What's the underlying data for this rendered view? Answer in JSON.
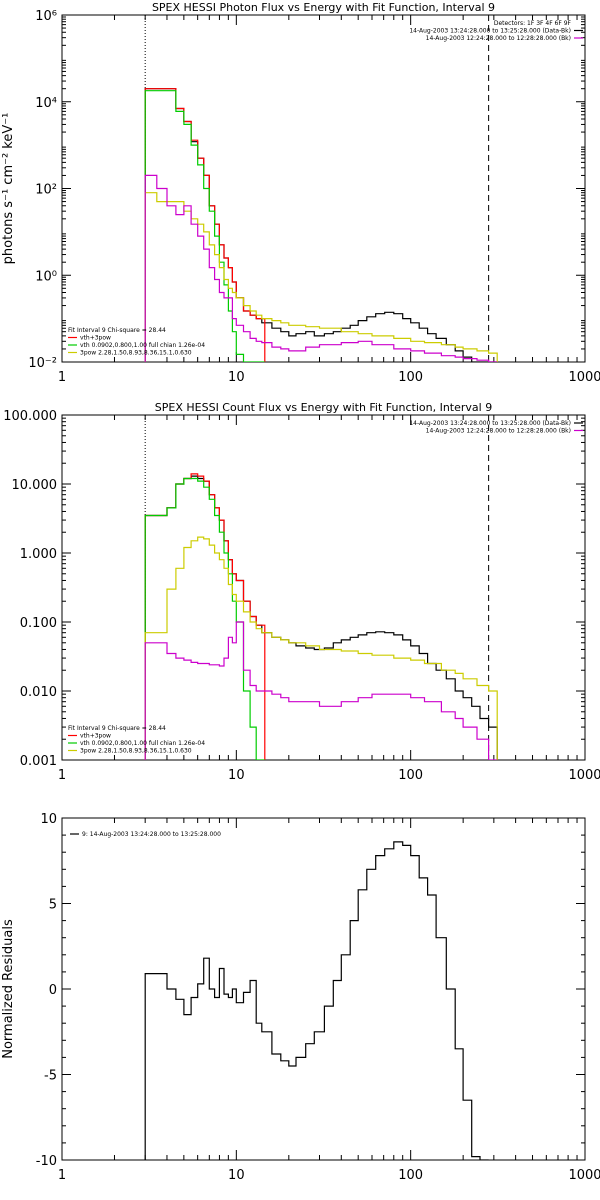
{
  "chart_data": [
    {
      "type": "line",
      "title": "SPEX HESSI Photon Flux vs Energy with Fit Function, Interval 9",
      "ylabel": "photons s⁻¹ cm⁻² keV⁻¹",
      "xlog": true,
      "ylog": true,
      "xlim": [
        1,
        1000
      ],
      "ylim": [
        0.01,
        1000000
      ],
      "xticks": [
        {
          "v": 1,
          "label": "1"
        },
        {
          "v": 10,
          "label": "10"
        },
        {
          "v": 100,
          "label": "100"
        },
        {
          "v": 1000,
          "label": "1000"
        }
      ],
      "yticks": [
        {
          "v": 0.01,
          "label": "10⁻²"
        },
        {
          "v": 1,
          "label": "10⁰"
        },
        {
          "v": 100,
          "label": "10²"
        },
        {
          "v": 10000,
          "label": "10⁴"
        },
        {
          "v": 1000000,
          "label": "10⁶"
        }
      ],
      "vlines": [
        {
          "x": 3,
          "style": "dotted"
        },
        {
          "x": 280,
          "style": "dashed"
        }
      ],
      "legend_right": {
        "lines": [
          {
            "text": "Detectors: 1F 3F 4F 6F 9F",
            "color": "#000000",
            "line": false
          },
          {
            "text": "14-Aug-2003 13:24:28.000 to 13:25:28.000 (Data-Bk)",
            "color": "#000000",
            "line": true
          },
          {
            "text": "14-Aug-2003 12:24:28.000 to 12:28:28.000 (Bk)",
            "color": "#cc00cc",
            "line": true
          }
        ]
      },
      "legend_left": {
        "lines": [
          {
            "text": "Fit Interval 9   Chi-square = 28.44",
            "color": "#000000",
            "line": false
          },
          {
            "text": "vth+3pow",
            "color": "#ff0000",
            "line": true
          },
          {
            "text": "vth 0.0902,0.800,1.00  full chian 1.26e-04",
            "color": "#00cc00",
            "line": true
          },
          {
            "text": "3pow 2.28,1.50,8.93,8.36,15.1,0.630",
            "color": "#cccc00",
            "line": true
          }
        ]
      },
      "series": [
        {
          "color": "#000000",
          "x": [
            3,
            3.5,
            4,
            4.5,
            5,
            5.5,
            6,
            6.5,
            7,
            7.5,
            8,
            8.5,
            9,
            9.5,
            10,
            11,
            12,
            13,
            14,
            16,
            18,
            20,
            22,
            25,
            28,
            32,
            36,
            40,
            45,
            50,
            56,
            63,
            71,
            80,
            90,
            100,
            112,
            125,
            140,
            160,
            180,
            200,
            224,
            250,
            280
          ],
          "y": [
            20000,
            20000,
            20000,
            7000,
            3500,
            1200,
            500,
            200,
            40,
            15,
            5,
            2.5,
            1.5,
            0.7,
            0.3,
            0.15,
            0.12,
            0.1,
            0.08,
            0.06,
            0.05,
            0.04,
            0.045,
            0.05,
            0.04,
            0.045,
            0.05,
            0.06,
            0.07,
            0.09,
            0.11,
            0.13,
            0.14,
            0.13,
            0.1,
            0.08,
            0.06,
            0.045,
            0.035,
            0.025,
            0.018,
            0.013,
            0.009,
            0.007,
            0.005
          ]
        },
        {
          "color": "#ff0000",
          "x": [
            3,
            3.5,
            4,
            4.5,
            5,
            5.5,
            6,
            6.5,
            7,
            7.5,
            8,
            8.5,
            9,
            9.5,
            10,
            11,
            12,
            13
          ],
          "y": [
            20000,
            20000,
            20000,
            7000,
            3500,
            1300,
            500,
            200,
            40,
            15,
            5,
            2.5,
            1.5,
            0.7,
            0.3,
            0.15,
            0.12,
            0.1
          ]
        },
        {
          "color": "#00cc00",
          "x": [
            3,
            3.5,
            4,
            4.5,
            5,
            5.5,
            6,
            6.5,
            7,
            7.5,
            8,
            8.5,
            9,
            9.5,
            10,
            11,
            12,
            13
          ],
          "y": [
            18000,
            18000,
            18000,
            6000,
            3000,
            1000,
            350,
            100,
            30,
            8,
            2,
            0.6,
            0.15,
            0.05,
            0.015,
            0.01,
            0.01,
            0.01
          ]
        },
        {
          "color": "#cccc00",
          "x": [
            3,
            3.5,
            4,
            4.5,
            5,
            5.5,
            6,
            6.5,
            7,
            7.5,
            8,
            8.5,
            9,
            9.5,
            10,
            11,
            12,
            13,
            14,
            16,
            18,
            20,
            25,
            30,
            40,
            50,
            60,
            80,
            100,
            120,
            150,
            180,
            200,
            240,
            280
          ],
          "y": [
            80,
            50,
            50,
            50,
            30,
            20,
            15,
            10,
            5,
            3,
            1.5,
            0.8,
            0.5,
            0.4,
            0.3,
            0.2,
            0.15,
            0.12,
            0.1,
            0.09,
            0.08,
            0.07,
            0.065,
            0.06,
            0.05,
            0.045,
            0.04,
            0.035,
            0.03,
            0.028,
            0.025,
            0.022,
            0.02,
            0.018,
            0.016
          ]
        },
        {
          "color": "#cc00cc",
          "x": [
            3,
            3.5,
            4,
            4.5,
            5,
            5.5,
            6,
            6.5,
            7,
            7.5,
            8,
            8.5,
            9,
            9.5,
            10,
            11,
            12,
            13,
            14,
            16,
            18,
            20,
            25,
            30,
            40,
            50,
            60,
            80,
            100,
            120,
            150,
            180,
            200,
            240,
            280
          ],
          "y": [
            200,
            100,
            40,
            25,
            40,
            15,
            8,
            4,
            1.5,
            0.8,
            0.4,
            0.3,
            0.3,
            0.1,
            0.07,
            0.05,
            0.035,
            0.03,
            0.028,
            0.022,
            0.02,
            0.018,
            0.022,
            0.025,
            0.028,
            0.03,
            0.025,
            0.02,
            0.018,
            0.016,
            0.014,
            0.013,
            0.012,
            0.011,
            0.01
          ]
        }
      ]
    },
    {
      "type": "line",
      "title": "SPEX HESSI Count Flux vs Energy with Fit Function, Interval 9",
      "ylabel": "",
      "xlog": true,
      "ylog": true,
      "xlim": [
        1,
        1000
      ],
      "ylim": [
        0.001,
        100
      ],
      "xticks": [
        {
          "v": 1,
          "label": "1"
        },
        {
          "v": 10,
          "label": "10"
        },
        {
          "v": 100,
          "label": "100"
        },
        {
          "v": 1000,
          "label": "1000"
        }
      ],
      "yticks": [
        {
          "v": 0.001,
          "label": "0.001"
        },
        {
          "v": 0.01,
          "label": "0.010"
        },
        {
          "v": 0.1,
          "label": "0.100"
        },
        {
          "v": 1,
          "label": "1.000"
        },
        {
          "v": 10,
          "label": "10.000"
        },
        {
          "v": 100,
          "label": "100.000"
        }
      ],
      "vlines": [
        {
          "x": 3,
          "style": "dotted"
        },
        {
          "x": 280,
          "style": "dashed"
        }
      ],
      "legend_right": {
        "lines": [
          {
            "text": "14-Aug-2003 13:24:28.000 to 13:25:28.000 (Data-Bk)",
            "color": "#000000",
            "line": true
          },
          {
            "text": "14-Aug-2003 12:24:28.000 to 12:28:28.000 (Bk)",
            "color": "#cc00cc",
            "line": true
          }
        ]
      },
      "legend_left": {
        "lines": [
          {
            "text": "Fit Interval 9   Chi-square = 28.44",
            "color": "#000000",
            "line": false
          },
          {
            "text": "vth+3pow",
            "color": "#ff0000",
            "line": true
          },
          {
            "text": "vth 0.0902,0.800,1.00  full chian 1.26e-04",
            "color": "#00cc00",
            "line": true
          },
          {
            "text": "3pow 2.28,1.50,8.93,8.36,15.1,0.630",
            "color": "#cccc00",
            "line": true
          }
        ]
      },
      "series": [
        {
          "color": "#000000",
          "x": [
            3,
            4,
            4.5,
            5,
            5.5,
            6,
            6.5,
            7,
            7.5,
            8,
            8.5,
            9,
            9.5,
            10,
            11,
            12,
            13,
            14,
            16,
            18,
            20,
            22,
            25,
            28,
            32,
            36,
            40,
            45,
            50,
            56,
            63,
            71,
            80,
            90,
            100,
            112,
            125,
            140,
            160,
            180,
            200,
            224,
            250,
            280
          ],
          "y": [
            3.5,
            4.5,
            10,
            12,
            13,
            12,
            11,
            7,
            4.5,
            3,
            1.5,
            0.8,
            0.5,
            0.4,
            0.2,
            0.12,
            0.09,
            0.07,
            0.06,
            0.055,
            0.05,
            0.045,
            0.042,
            0.04,
            0.042,
            0.05,
            0.055,
            0.06,
            0.065,
            0.07,
            0.072,
            0.07,
            0.065,
            0.055,
            0.045,
            0.035,
            0.025,
            0.02,
            0.015,
            0.01,
            0.008,
            0.006,
            0.004,
            0.003
          ]
        },
        {
          "color": "#ff0000",
          "x": [
            3,
            4,
            4.5,
            5,
            5.5,
            6,
            6.5,
            7,
            7.5,
            8,
            8.5,
            9,
            9.5,
            10,
            11,
            12,
            13
          ],
          "y": [
            3.5,
            4.5,
            10,
            12,
            14,
            13,
            11,
            7,
            4.5,
            3,
            1.5,
            0.8,
            0.5,
            0.4,
            0.2,
            0.12,
            0.09
          ]
        },
        {
          "color": "#00cc00",
          "x": [
            3,
            4,
            4.5,
            5,
            5.5,
            6,
            6.5,
            7,
            7.5,
            8,
            8.5,
            9,
            9.5,
            10,
            11,
            12,
            13
          ],
          "y": [
            3.5,
            4.5,
            10,
            12,
            12,
            11,
            9,
            6,
            3.5,
            2,
            1,
            0.5,
            0.2,
            0.1,
            0.01,
            0.003,
            0.001
          ]
        },
        {
          "color": "#cccc00",
          "x": [
            3,
            4,
            4.5,
            5,
            5.5,
            6,
            6.5,
            7,
            7.5,
            8,
            8.5,
            9,
            9.5,
            10,
            11,
            12,
            13,
            14,
            16,
            18,
            20,
            25,
            30,
            40,
            50,
            60,
            80,
            100,
            120,
            150,
            180,
            200,
            240,
            280
          ],
          "y": [
            0.07,
            0.3,
            0.6,
            1.2,
            1.5,
            1.7,
            1.6,
            1.3,
            1,
            0.8,
            0.6,
            0.35,
            0.25,
            0.2,
            0.14,
            0.1,
            0.08,
            0.07,
            0.06,
            0.055,
            0.05,
            0.045,
            0.04,
            0.038,
            0.035,
            0.033,
            0.03,
            0.028,
            0.025,
            0.02,
            0.018,
            0.015,
            0.012,
            0.01
          ]
        },
        {
          "color": "#cc00cc",
          "x": [
            3,
            4,
            4.5,
            5,
            5.5,
            6,
            6.5,
            7,
            7.5,
            8,
            8.5,
            9,
            9.5,
            10,
            11,
            12,
            13,
            14,
            16,
            18,
            20,
            25,
            30,
            40,
            50,
            60,
            80,
            100,
            120,
            150,
            180,
            200,
            240,
            280
          ],
          "y": [
            0.05,
            0.035,
            0.03,
            0.028,
            0.026,
            0.025,
            0.025,
            0.024,
            0.024,
            0.023,
            0.03,
            0.06,
            0.05,
            0.1,
            0.02,
            0.012,
            0.01,
            0.01,
            0.009,
            0.008,
            0.007,
            0.007,
            0.006,
            0.007,
            0.008,
            0.009,
            0.009,
            0.008,
            0.007,
            0.005,
            0.004,
            0.003,
            0.002,
            0.001
          ]
        }
      ]
    },
    {
      "type": "line",
      "title": "",
      "ylabel": "Normalized Residuals",
      "xlog": true,
      "ylog": false,
      "xlim": [
        1,
        1000
      ],
      "ylim": [
        -10,
        10
      ],
      "xticks": [
        {
          "v": 1,
          "label": "1"
        },
        {
          "v": 10,
          "label": "10"
        },
        {
          "v": 100,
          "label": "100"
        },
        {
          "v": 1000,
          "label": "1000"
        }
      ],
      "yticks": [
        {
          "v": -10,
          "label": "-10"
        },
        {
          "v": -5,
          "label": "-5"
        },
        {
          "v": 0,
          "label": "0"
        },
        {
          "v": 5,
          "label": "5"
        },
        {
          "v": 10,
          "label": "10"
        }
      ],
      "vlines": [],
      "legend_left_top": {
        "lines": [
          {
            "text": "9: 14-Aug-2003 13:24:28.000 to 13:25:28.000",
            "color": "#000000",
            "line": true
          }
        ]
      },
      "series": [
        {
          "color": "#000000",
          "x": [
            3,
            4,
            4.5,
            5,
            5.5,
            6,
            6.5,
            7,
            7.5,
            8,
            8.5,
            9,
            9.5,
            10,
            11,
            12,
            13,
            14,
            16,
            18,
            20,
            22,
            25,
            28,
            32,
            36,
            40,
            45,
            50,
            56,
            63,
            71,
            80,
            90,
            100,
            112,
            125,
            140,
            160,
            180,
            200,
            224,
            250
          ],
          "y": [
            0.9,
            0,
            -0.6,
            -1.5,
            -0.5,
            0.3,
            1.8,
            0,
            -0.5,
            1.2,
            -0.3,
            -0.5,
            0,
            -0.8,
            -0.2,
            0.5,
            -2,
            -2.5,
            -3.8,
            -4.2,
            -4.5,
            -4,
            -3.2,
            -2.5,
            -1,
            0.5,
            2,
            4,
            5.8,
            7,
            7.8,
            8.2,
            8.6,
            8.4,
            7.8,
            6.5,
            5.5,
            3,
            0,
            -3.5,
            -6.5,
            -9.8,
            -10
          ]
        }
      ]
    }
  ]
}
